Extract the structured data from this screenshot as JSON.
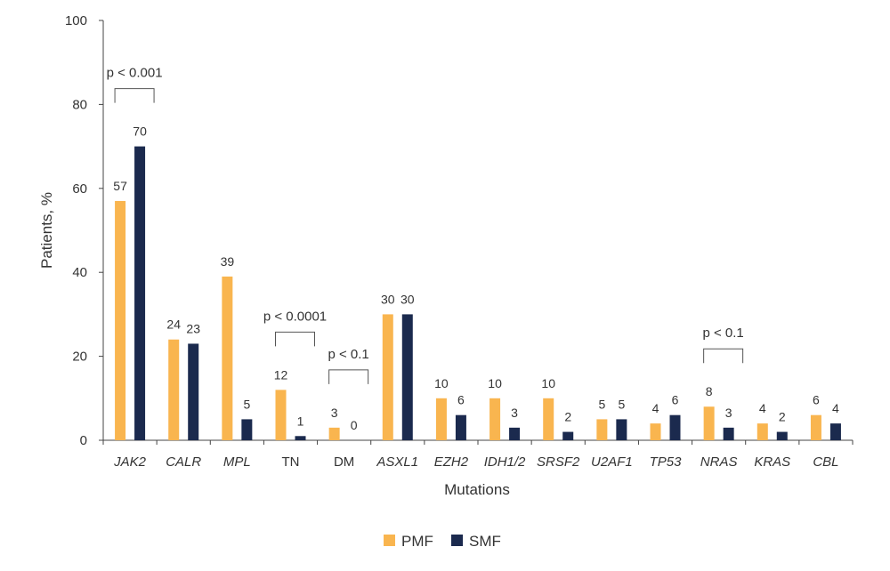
{
  "chart_data": {
    "type": "bar",
    "title": "",
    "xlabel": "Mutations",
    "ylabel": "Patients, %",
    "ylim": [
      0,
      100
    ],
    "yticks": [
      "0",
      "20",
      "40",
      "60",
      "80",
      "100"
    ],
    "grid": false,
    "legend_position": "bottom-center",
    "categories": [
      "JAK2",
      "CALR",
      "MPL",
      "TN",
      "DM",
      "ASXL1",
      "EZH2",
      "IDH1/2",
      "SRSF2",
      "U2AF1",
      "TP53",
      "NRAS",
      "KRAS",
      "CBL"
    ],
    "categories_italic": [
      true,
      true,
      true,
      false,
      false,
      true,
      true,
      true,
      true,
      true,
      true,
      true,
      true,
      true
    ],
    "series": [
      {
        "name": "PMF",
        "color": "#F9B54F",
        "values": [
          57,
          24,
          39,
          12,
          3,
          30,
          10,
          10,
          10,
          5,
          4,
          8,
          4,
          6
        ]
      },
      {
        "name": "SMF",
        "color": "#1B2A4E",
        "values": [
          70,
          23,
          5,
          1,
          0,
          30,
          6,
          3,
          2,
          5,
          6,
          3,
          2,
          4
        ]
      }
    ],
    "annotations": [
      {
        "text": "p < 0.001",
        "category": "JAK2"
      },
      {
        "text": "p < 0.0001",
        "category": "TN"
      },
      {
        "text": "p < 0.1",
        "category": "DM"
      },
      {
        "text": "p < 0.1",
        "category": "NRAS"
      }
    ]
  }
}
